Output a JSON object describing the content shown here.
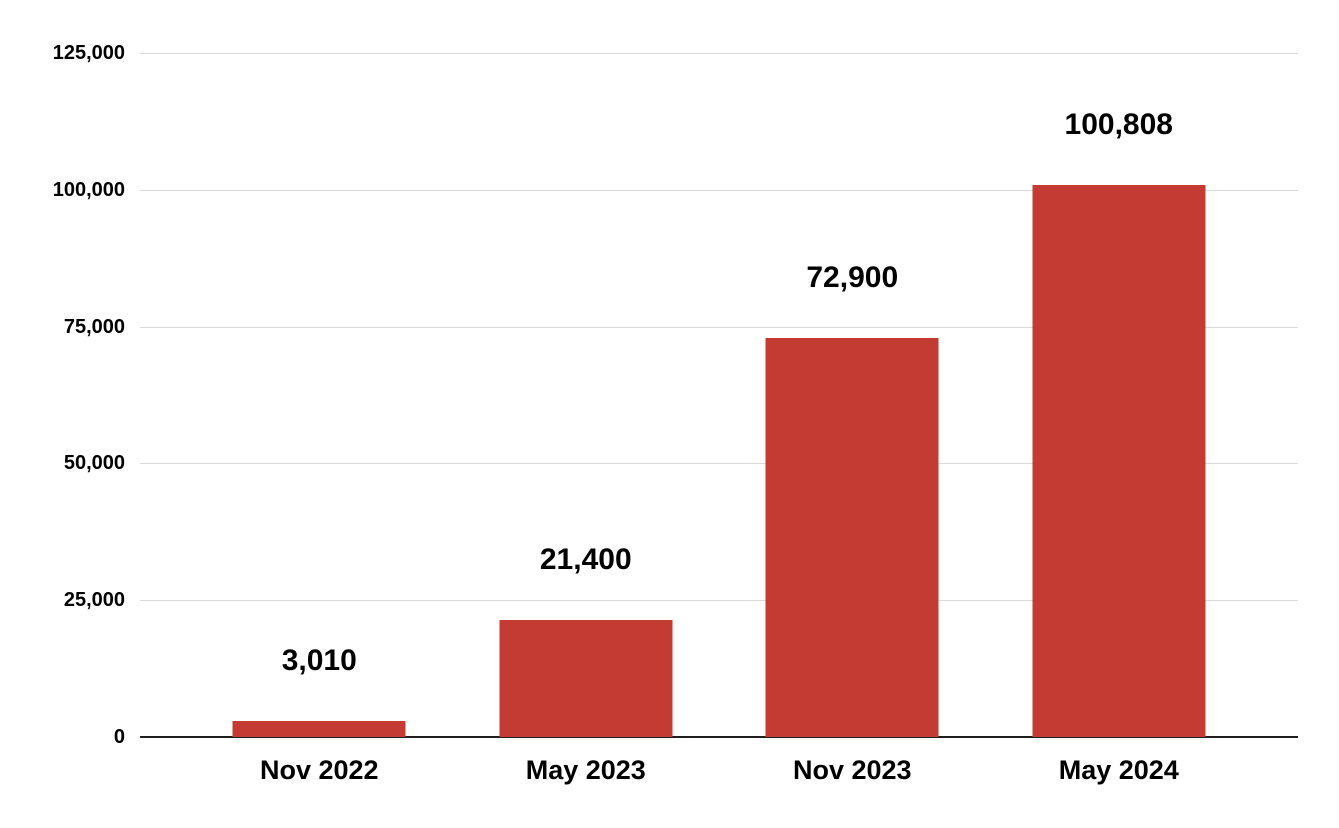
{
  "chart_data": {
    "type": "bar",
    "categories": [
      "Nov 2022",
      "May 2023",
      "Nov 2023",
      "May 2024"
    ],
    "values": [
      3010,
      21400,
      72900,
      100808
    ],
    "data_labels": [
      "3,010",
      "21,400",
      "72,900",
      "100,808"
    ],
    "y_ticks": [
      "0",
      "25,000",
      "50,000",
      "75,000",
      "100,000",
      "125,000"
    ],
    "ylim": [
      0,
      125000
    ],
    "title": "",
    "xlabel": "",
    "ylabel": "",
    "grid": true,
    "legend_position": "none",
    "bar_color": "#c33b33",
    "gridline_color": "#d9d9d9",
    "baseline_color": "#1f1f1f",
    "text_color": "#000000",
    "background_color": "#ffffff"
  }
}
